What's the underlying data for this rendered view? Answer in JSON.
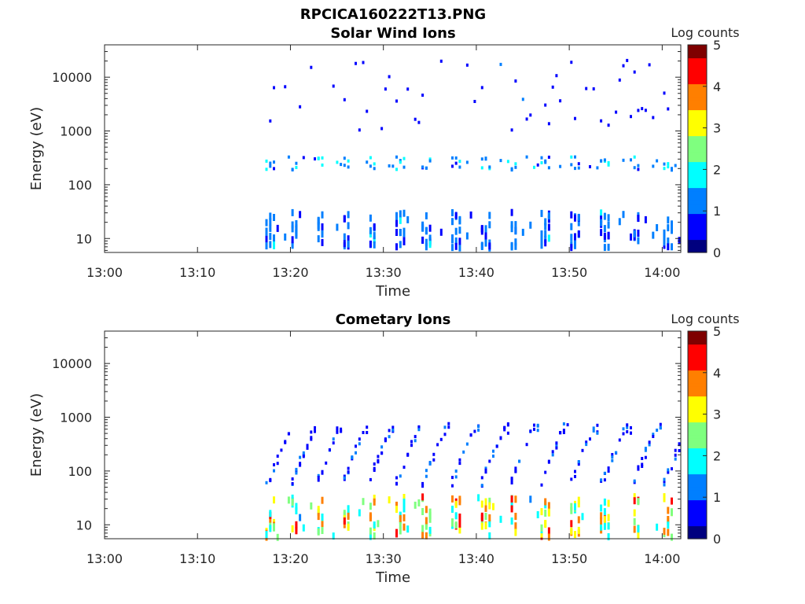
{
  "figure_title": "RPCICA160222T13.PNG",
  "colormap": [
    "#00007f",
    "#0000ff",
    "#007fff",
    "#00ffff",
    "#7fff7f",
    "#ffff00",
    "#ff7f00",
    "#ff0000",
    "#7f0000"
  ],
  "chart_data": [
    {
      "type": "heatmap",
      "title": "Solar Wind Ions",
      "xlabel": "Time",
      "ylabel": "Energy (eV)",
      "xticks": [
        "13:00",
        "13:10",
        "13:20",
        "13:30",
        "13:40",
        "13:50",
        "14:00"
      ],
      "xlim_minutes": [
        0,
        62
      ],
      "yscale": "log",
      "ylim": [
        5.5,
        40000
      ],
      "yticks": [
        10,
        100,
        1000,
        10000
      ],
      "ytick_labels": [
        "10",
        "100",
        "1000",
        "10000"
      ],
      "colorbar": {
        "label": "Log counts",
        "range": [
          0,
          5
        ],
        "ticks": [
          "0",
          "1",
          "2",
          "3",
          "4",
          "5"
        ]
      },
      "data_start_minute": 17.3,
      "data_end_minute": 61.9,
      "sweep_start_minutes": [
        17.3,
        19.8,
        22.5,
        25.3,
        28.1,
        31.1,
        34.0,
        37.1,
        40.3,
        43.4,
        46.7,
        49.9,
        53.2,
        56.6,
        59.9
      ],
      "bands": [
        {
          "e_min": 7,
          "e_max": 32,
          "level": 1.0
        },
        {
          "e_min": 180,
          "e_max": 320,
          "level": 1.4
        },
        {
          "e_min": 1000,
          "e_max": 20000,
          "level": 0.7
        }
      ]
    },
    {
      "type": "heatmap",
      "title": "Cometary Ions",
      "xlabel": "Time",
      "ylabel": "Energy (eV)",
      "xticks": [
        "13:00",
        "13:10",
        "13:20",
        "13:30",
        "13:40",
        "13:50",
        "14:00"
      ],
      "xlim_minutes": [
        0,
        62
      ],
      "yscale": "log",
      "ylim": [
        5.5,
        40000
      ],
      "yticks": [
        10,
        100,
        1000,
        10000
      ],
      "ytick_labels": [
        "10",
        "100",
        "1000",
        "10000"
      ],
      "colorbar": {
        "label": "Log counts",
        "range": [
          0,
          5
        ],
        "ticks": [
          "0",
          "1",
          "2",
          "3",
          "4",
          "5"
        ]
      },
      "data_start_minute": 17.3,
      "data_end_minute": 61.9,
      "sweep_start_minutes": [
        17.3,
        19.8,
        22.5,
        25.3,
        28.1,
        31.1,
        34.0,
        37.1,
        40.3,
        43.4,
        46.7,
        49.9,
        53.2,
        56.6,
        59.9
      ],
      "bands": [
        {
          "e_min": 6,
          "e_max": 35,
          "level": 2.4
        },
        {
          "e_min": 50,
          "e_max": 600,
          "level": 0.8
        }
      ]
    }
  ]
}
